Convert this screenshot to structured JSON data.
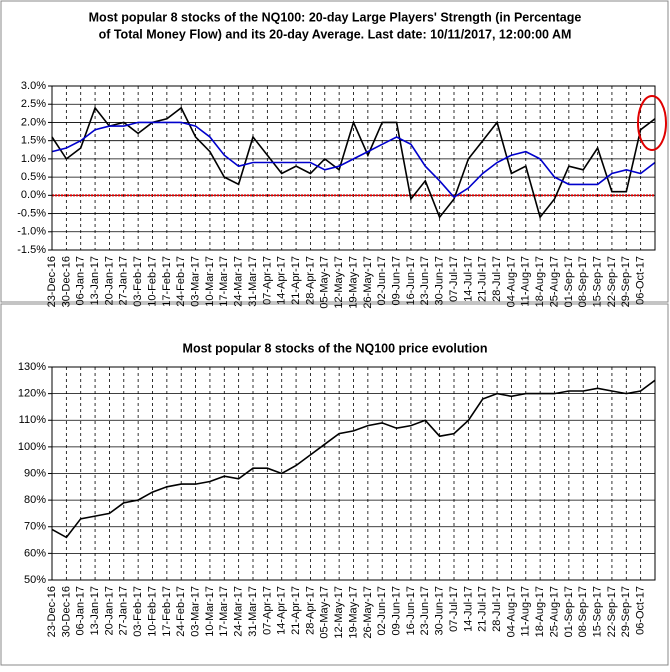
{
  "chart_data": [
    {
      "type": "line",
      "title": [
        "Most popular 8 stocks of the NQ100: 20-day Large Players' Strength (in Percentage",
        "of Total Money Flow) and its 20-day Average. Last date: 10/11/2017, 12:00:00 AM"
      ],
      "categories": [
        "23-Dec-16",
        "30-Dec-16",
        "06-Jan-17",
        "13-Jan-17",
        "20-Jan-17",
        "27-Jan-17",
        "03-Feb-17",
        "10-Feb-17",
        "17-Feb-17",
        "24-Feb-17",
        "03-Mar-17",
        "10-Mar-17",
        "17-Mar-17",
        "24-Mar-17",
        "31-Mar-17",
        "07-Apr-17",
        "14-Apr-17",
        "21-Apr-17",
        "28-Apr-17",
        "05-May-17",
        "12-May-17",
        "19-May-17",
        "26-May-17",
        "02-Jun-17",
        "09-Jun-17",
        "16-Jun-17",
        "23-Jun-17",
        "30-Jun-17",
        "07-Jul-17",
        "14-Jul-17",
        "21-Jul-17",
        "28-Jul-17",
        "04-Aug-17",
        "11-Aug-17",
        "18-Aug-17",
        "25-Aug-17",
        "01-Sep-17",
        "08-Sep-17",
        "15-Sep-17",
        "22-Sep-17",
        "29-Sep-17",
        "06-Oct-17",
        null
      ],
      "series": [
        {
          "color": "#000000",
          "values": [
            1.6,
            1.0,
            1.3,
            2.4,
            1.9,
            2.0,
            1.7,
            2.0,
            2.1,
            2.4,
            1.6,
            1.2,
            0.5,
            0.3,
            1.6,
            1.1,
            0.6,
            0.8,
            0.6,
            1.0,
            0.7,
            2.0,
            1.1,
            2.0,
            2.0,
            -0.1,
            0.4,
            -0.6,
            -0.1,
            1.0,
            1.5,
            2.0,
            0.6,
            0.8,
            -0.6,
            -0.1,
            0.8,
            0.7,
            1.3,
            0.1,
            0.1,
            1.8,
            2.1
          ]
        },
        {
          "color": "#0000cc",
          "values": [
            1.2,
            1.3,
            1.5,
            1.8,
            1.9,
            1.9,
            2.0,
            2.0,
            2.0,
            2.0,
            1.9,
            1.6,
            1.1,
            0.8,
            0.9,
            0.9,
            0.9,
            0.9,
            0.9,
            0.7,
            0.8,
            1.0,
            1.2,
            1.4,
            1.6,
            1.4,
            0.8,
            0.4,
            -0.05,
            0.2,
            0.6,
            0.9,
            1.1,
            1.2,
            1.0,
            0.5,
            0.3,
            0.3,
            0.3,
            0.6,
            0.7,
            0.6,
            0.9
          ]
        }
      ],
      "ylim": [
        -1.5,
        3.0
      ],
      "yticks": [
        {
          "value": -1.5,
          "label": "-1.5%"
        },
        {
          "value": -1.0,
          "label": "-1.0%"
        },
        {
          "value": -0.5,
          "label": "-0.5%"
        },
        {
          "value": 0,
          "label": "0.0%"
        },
        {
          "value": 0.5,
          "label": "0.5%"
        },
        {
          "value": 1.0,
          "label": "1.0%"
        },
        {
          "value": 1.5,
          "label": "1.5%"
        },
        {
          "value": 2.0,
          "label": "2.0%"
        },
        {
          "value": 2.5,
          "label": "2.5%"
        },
        {
          "value": 3.0,
          "label": "3.0%"
        }
      ],
      "grid": true
    },
    {
      "type": "line",
      "title": [
        "Most popular 8 stocks of the NQ100 price evolution"
      ],
      "categories": [
        "23-Dec-16",
        "30-Dec-16",
        "06-Jan-17",
        "13-Jan-17",
        "20-Jan-17",
        "27-Jan-17",
        "03-Feb-17",
        "10-Feb-17",
        "17-Feb-17",
        "24-Feb-17",
        "03-Mar-17",
        "10-Mar-17",
        "17-Mar-17",
        "24-Mar-17",
        "31-Mar-17",
        "07-Apr-17",
        "14-Apr-17",
        "21-Apr-17",
        "28-Apr-17",
        "05-May-17",
        "12-May-17",
        "19-May-17",
        "26-May-17",
        "02-Jun-17",
        "09-Jun-17",
        "16-Jun-17",
        "23-Jun-17",
        "30-Jun-17",
        "07-Jul-17",
        "14-Jul-17",
        "21-Jul-17",
        "28-Jul-17",
        "04-Aug-17",
        "11-Aug-17",
        "18-Aug-17",
        "25-Aug-17",
        "01-Sep-17",
        "08-Sep-17",
        "15-Sep-17",
        "22-Sep-17",
        "29-Sep-17",
        "06-Oct-17",
        null
      ],
      "series": [
        {
          "color": "#000000",
          "values": [
            69,
            66,
            73,
            74,
            75,
            79,
            80,
            83,
            85,
            86,
            86,
            87,
            89,
            88,
            92,
            92,
            90,
            93,
            97,
            101,
            105,
            106,
            108,
            109,
            107,
            108,
            110,
            104,
            105,
            110,
            118,
            120,
            119,
            120,
            120,
            120,
            121,
            121,
            122,
            121,
            120,
            121,
            125
          ]
        }
      ],
      "ylim": [
        50,
        130
      ],
      "yticks": [
        {
          "value": 50,
          "label": "50%"
        },
        {
          "value": 60,
          "label": "60%"
        },
        {
          "value": 70,
          "label": "70%"
        },
        {
          "value": 80,
          "label": "80%"
        },
        {
          "value": 90,
          "label": "90%"
        },
        {
          "value": 100,
          "label": "100%"
        },
        {
          "value": 110,
          "label": "110%"
        },
        {
          "value": 120,
          "label": "120%"
        },
        {
          "value": 130,
          "label": "130%"
        }
      ],
      "grid": true
    }
  ]
}
